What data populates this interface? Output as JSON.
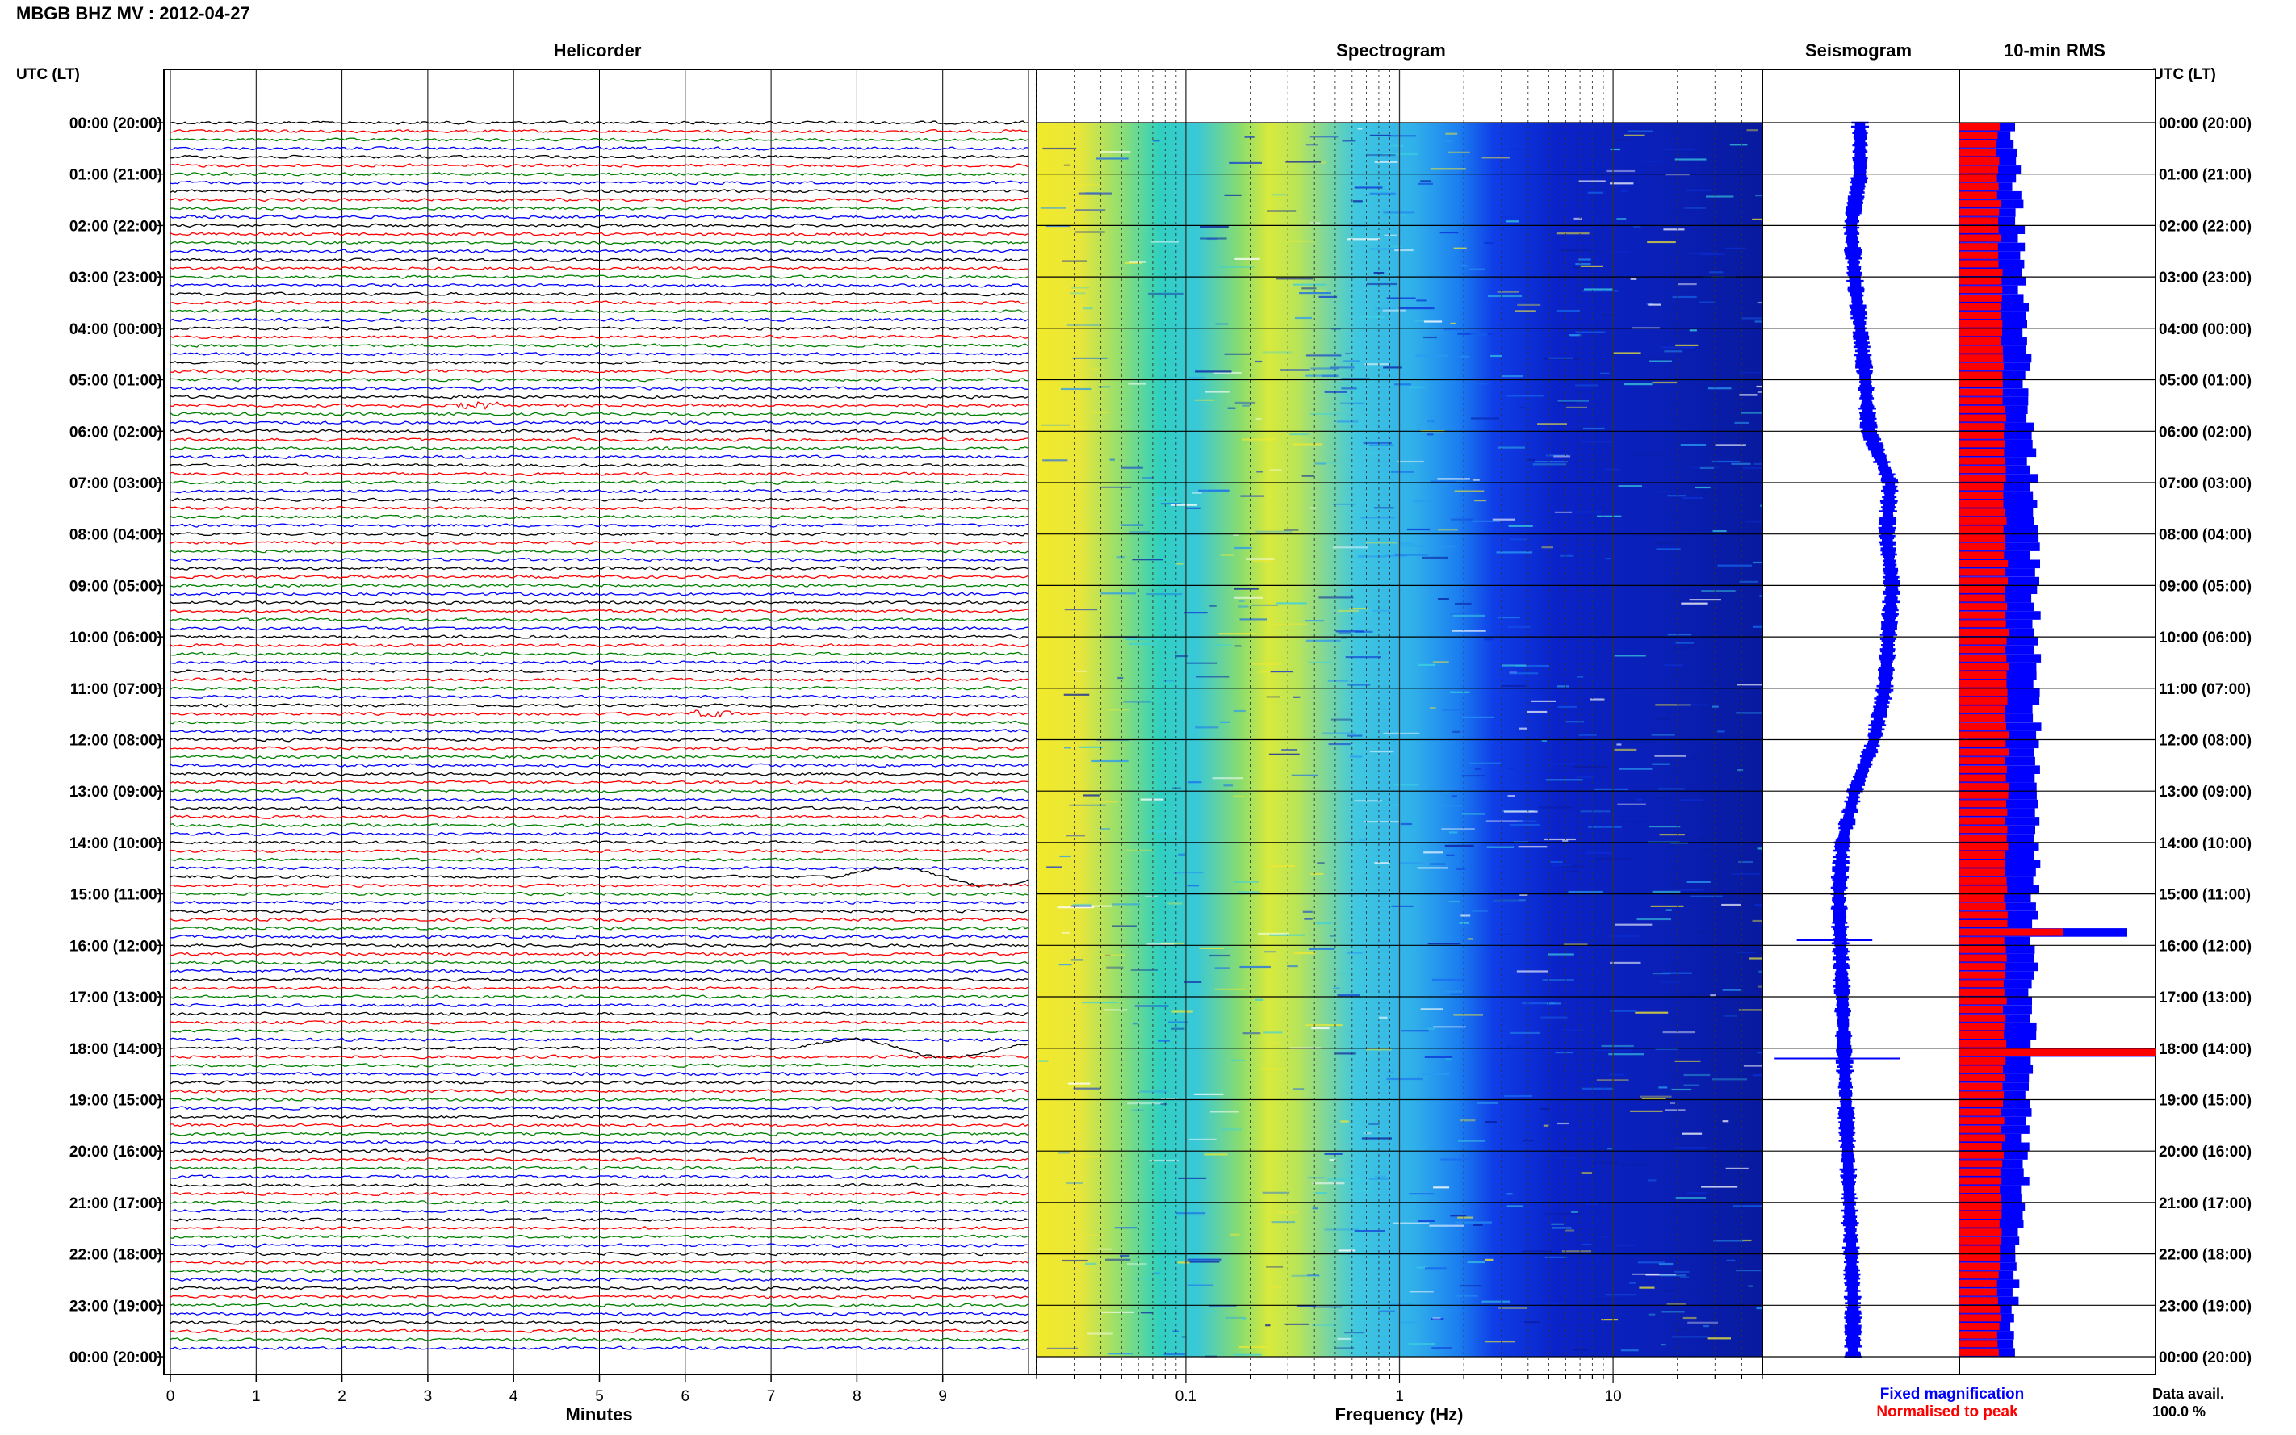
{
  "title": "MBGB BHZ MV : 2012-04-27",
  "panels": {
    "helicorder": "Helicorder",
    "spectrogram": "Spectrogram",
    "seismogram": "Seismogram",
    "rms": "10-min RMS"
  },
  "time_axis_label": "UTC (LT)",
  "time_labels": [
    "00:00 (20:00)",
    "01:00 (21:00)",
    "02:00 (22:00)",
    "03:00 (23:00)",
    "04:00 (00:00)",
    "05:00 (01:00)",
    "06:00 (02:00)",
    "07:00 (03:00)",
    "08:00 (04:00)",
    "09:00 (05:00)",
    "10:00 (06:00)",
    "11:00 (07:00)",
    "12:00 (08:00)",
    "13:00 (09:00)",
    "14:00 (10:00)",
    "15:00 (11:00)",
    "16:00 (12:00)",
    "17:00 (13:00)",
    "18:00 (14:00)",
    "19:00 (15:00)",
    "20:00 (16:00)",
    "21:00 (17:00)",
    "22:00 (18:00)",
    "23:00 (19:00)",
    "00:00 (20:00)"
  ],
  "minutes_ticks": [
    "0",
    "1",
    "2",
    "3",
    "4",
    "5",
    "6",
    "7",
    "8",
    "9"
  ],
  "minutes_label": "Minutes",
  "freq_ticks": [
    "0.1",
    "1",
    "10"
  ],
  "freq_label": "Frequency (Hz)",
  "legend": {
    "fixed": "Fixed magnification",
    "normalised": "Normalised to peak",
    "fixed_color": "#0000ff",
    "normalised_color": "#ff0000"
  },
  "data_avail_label": "Data avail.",
  "data_avail_value": "100.0 %",
  "helicorder_colors": [
    "#000000",
    "#ff0000",
    "#008000",
    "#0000ff"
  ],
  "chart_data": [
    {
      "type": "line",
      "title": "Helicorder",
      "xlabel": "Minutes",
      "xlim": [
        0,
        10
      ],
      "ylabel": "UTC (LT)",
      "rows": 144,
      "events": [
        {
          "row": 33,
          "minute": 3.6,
          "note": "small"
        },
        {
          "row": 69,
          "minute": 6.3,
          "note": "small"
        },
        {
          "row": 88,
          "minute": 9.0,
          "note": "long-period"
        },
        {
          "row": 108,
          "minute": 8.5,
          "note": "long-period"
        }
      ]
    },
    {
      "type": "heatmap",
      "title": "Spectrogram",
      "xlabel": "Frequency (Hz)",
      "xscale": "log",
      "xlim": [
        0.02,
        50
      ],
      "ylabel": "UTC (LT)",
      "colormap": [
        "#ffff00",
        "#00ffff",
        "#0000ff",
        "#000080"
      ]
    },
    {
      "type": "line",
      "title": "Seismogram",
      "hourly_offset": [
        0,
        0,
        -0.5,
        -0.3,
        0,
        0.3,
        0.5,
        1.7,
        1.5,
        1.8,
        1.6,
        1.4,
        0.8,
        -0.3,
        -1.0,
        -1.2,
        -1.1,
        -1.0,
        -0.9,
        -0.8,
        -0.7,
        -0.6,
        -0.5,
        -0.4
      ],
      "spikes_hours": [
        15.9,
        18.2
      ]
    },
    {
      "type": "bar",
      "title": "10-min RMS",
      "series": [
        {
          "name": "Fixed magnification",
          "color": "#0000ff"
        },
        {
          "name": "Normalised to peak",
          "color": "#ff0000"
        }
      ],
      "peaks_hours": [
        15.7,
        18.0
      ]
    }
  ]
}
